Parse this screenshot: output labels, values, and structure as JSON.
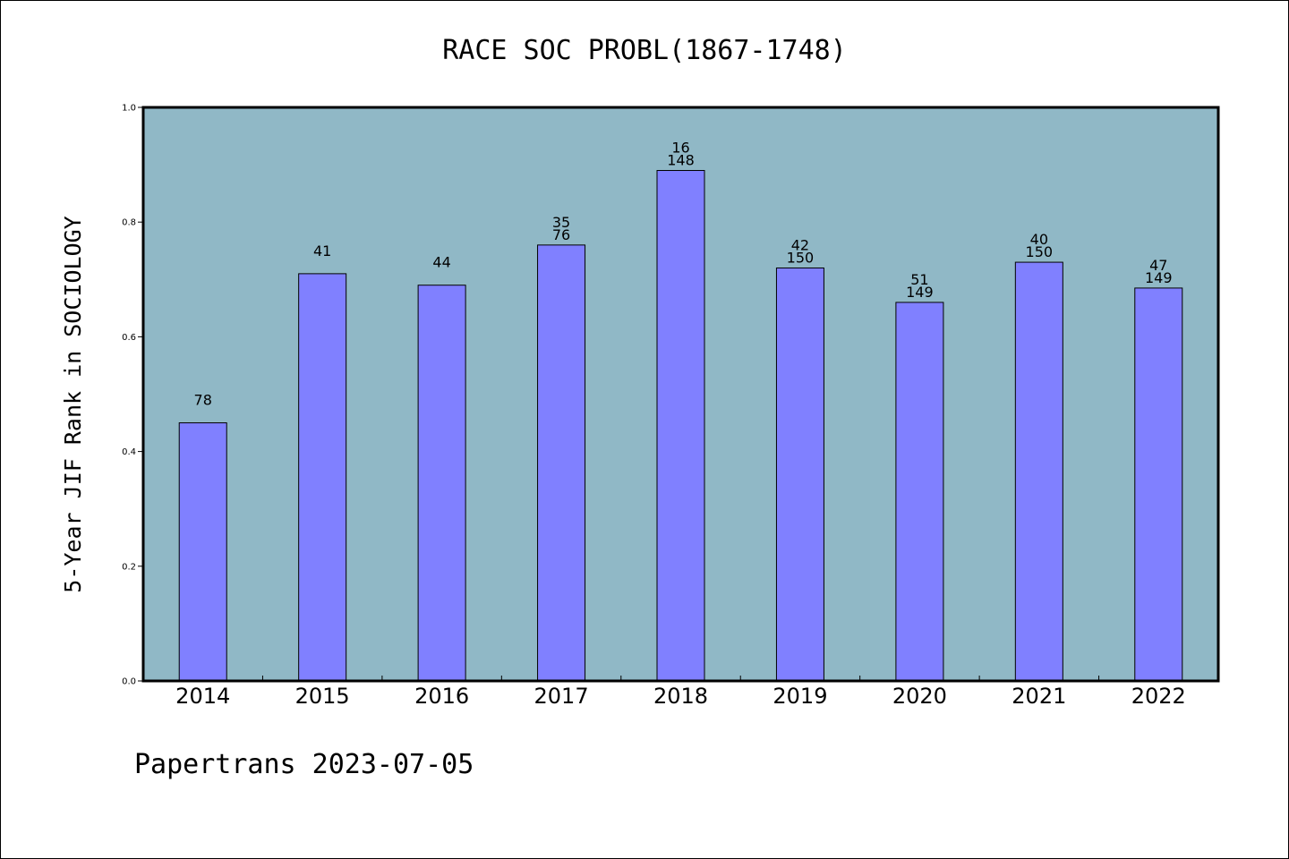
{
  "chart_data": {
    "type": "bar",
    "title": "RACE SOC PROBL(1867-1748)",
    "xlabel": "",
    "ylabel": "5-Year JIF Rank in SOCIOLOGY",
    "ylim": [
      0.0,
      1.0
    ],
    "yticks": [
      "0.0",
      "0.2",
      "0.4",
      "0.6",
      "0.8",
      "1.0"
    ],
    "grid": false,
    "categories": [
      "2014",
      "2015",
      "2016",
      "2017",
      "2018",
      "2019",
      "2020",
      "2021",
      "2022"
    ],
    "values": [
      0.45,
      0.71,
      0.69,
      0.76,
      0.89,
      0.72,
      0.66,
      0.73,
      0.685
    ],
    "annotations": [
      [
        "78"
      ],
      [
        "41"
      ],
      [
        "44"
      ],
      [
        "35",
        "76"
      ],
      [
        "16",
        "148"
      ],
      [
        "42",
        "150"
      ],
      [
        "51",
        "149"
      ],
      [
        "40",
        "150"
      ],
      [
        "47",
        "149"
      ]
    ],
    "colors": {
      "plot_background": "#90b8c6",
      "bar": "#8080ff",
      "bar_edge": "#000000"
    }
  },
  "footer": {
    "text": "Papertrans 2023-07-05"
  }
}
